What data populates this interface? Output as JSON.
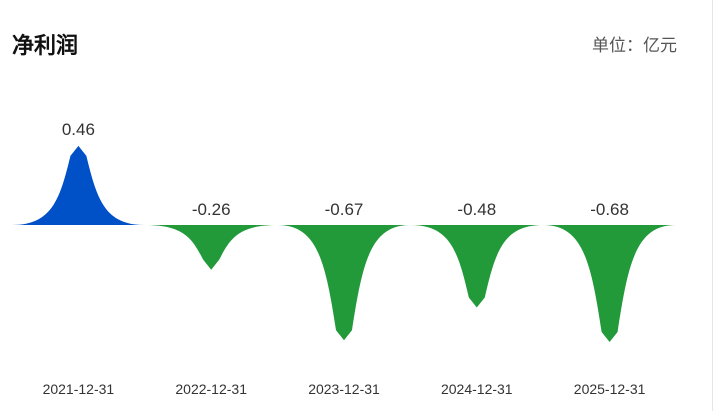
{
  "header": {
    "title": "净利润",
    "unit": "单位：亿元"
  },
  "chart_data": {
    "type": "bar",
    "title": "净利润",
    "unit": "单位：亿元",
    "categories": [
      "2021-12-31",
      "2022-12-31",
      "2023-12-31",
      "2024-12-31",
      "2025-12-31"
    ],
    "values": [
      0.46,
      -0.26,
      -0.67,
      -0.48,
      -0.68
    ],
    "value_labels": [
      "0.46",
      "-0.26",
      "-0.67",
      "-0.48",
      "-0.68"
    ],
    "colors": {
      "positive": "#0050c8",
      "negative": "#229a3a"
    },
    "grid": false,
    "legend": "none"
  }
}
